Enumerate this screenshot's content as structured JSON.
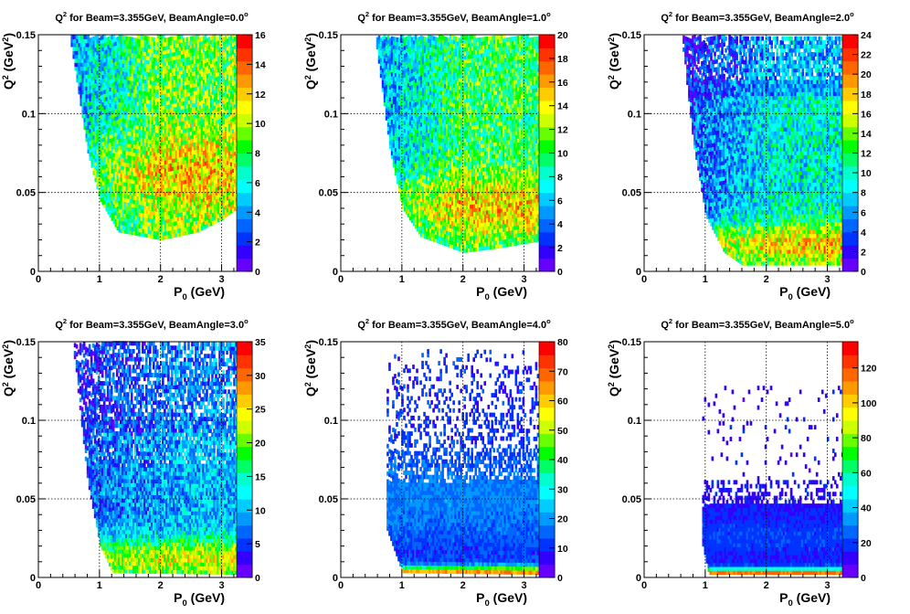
{
  "chart_data": [
    {
      "type": "heatmap",
      "title": "Q² for Beam=3.355GeV, BeamAngle=0.0°",
      "title_main": "Q",
      "title_sup": "2",
      "title_rest": " for Beam=3.355GeV, BeamAngle=0.0",
      "title_deg": "o",
      "xlabel": "P₀ (GeV)",
      "xlabel_main": "P",
      "xlabel_sub": "0",
      "xlabel_rest": " (GeV)",
      "ylabel": "Q² (GeV²)",
      "ylabel_main": "Q",
      "ylabel_sup": "2",
      "ylabel_rest": " (GeV",
      "ylabel_sup2": "2",
      "ylabel_end": ")",
      "xlim": [
        0,
        3.5
      ],
      "ylim": [
        0,
        0.15
      ],
      "zlim": [
        0,
        16
      ],
      "x_ticks": [
        "0",
        "1",
        "2",
        "3"
      ],
      "y_ticks": [
        "0",
        "0.05",
        "0.1",
        "0.15"
      ],
      "z_ticks": [
        "0",
        "2",
        "4",
        "6",
        "8",
        "10",
        "12",
        "14",
        "16"
      ],
      "grid": true,
      "profile": "angle0",
      "region": {
        "p_min": 0.5,
        "p_max": 3.35,
        "q2_min_at_p": [
          [
            0.5,
            0.15
          ],
          [
            0.8,
            0.075
          ],
          [
            1.0,
            0.045
          ],
          [
            1.3,
            0.025
          ],
          [
            2.0,
            0.02
          ],
          [
            2.6,
            0.025
          ],
          [
            3.0,
            0.033
          ],
          [
            3.35,
            0.043
          ]
        ],
        "q2_max": 0.148
      },
      "peak_value": 15
    },
    {
      "type": "heatmap",
      "title": "Q² for Beam=3.355GeV, BeamAngle=1.0°",
      "title_main": "Q",
      "title_sup": "2",
      "title_rest": " for Beam=3.355GeV, BeamAngle=1.0",
      "title_deg": "o",
      "xlabel": "P₀ (GeV)",
      "xlabel_main": "P",
      "xlabel_sub": "0",
      "xlabel_rest": " (GeV)",
      "ylabel": "Q² (GeV²)",
      "ylabel_main": "Q",
      "ylabel_sup": "2",
      "ylabel_rest": " (GeV",
      "ylabel_sup2": "2",
      "ylabel_end": ")",
      "xlim": [
        0,
        3.5
      ],
      "ylim": [
        0,
        0.15
      ],
      "zlim": [
        0,
        20
      ],
      "x_ticks": [
        "0",
        "1",
        "2",
        "3"
      ],
      "y_ticks": [
        "0",
        "0.05",
        "0.1",
        "0.15"
      ],
      "z_ticks": [
        "0",
        "2",
        "4",
        "6",
        "8",
        "10",
        "12",
        "14",
        "16",
        "18",
        "20"
      ],
      "grid": true,
      "profile": "angle1",
      "region": {
        "p_min": 0.55,
        "p_max": 3.35,
        "q2_min_at_p": [
          [
            0.55,
            0.15
          ],
          [
            0.8,
            0.075
          ],
          [
            1.0,
            0.04
          ],
          [
            1.3,
            0.022
          ],
          [
            2.0,
            0.012
          ],
          [
            2.6,
            0.015
          ],
          [
            3.35,
            0.02
          ]
        ],
        "q2_max": 0.148
      },
      "peak_value": 17
    },
    {
      "type": "heatmap",
      "title": "Q² for Beam=3.355GeV, BeamAngle=2.0°",
      "title_main": "Q",
      "title_sup": "2",
      "title_rest": " for Beam=3.355GeV, BeamAngle=2.0",
      "title_deg": "o",
      "xlabel": "P₀ (GeV)",
      "xlabel_main": "P",
      "xlabel_sub": "0",
      "xlabel_rest": " (GeV)",
      "ylabel": "Q² (GeV²)",
      "ylabel_main": "Q",
      "ylabel_sup": "2",
      "ylabel_rest": " (GeV",
      "ylabel_sup2": "2",
      "ylabel_end": ")",
      "xlim": [
        0,
        3.5
      ],
      "ylim": [
        0,
        0.15
      ],
      "zlim": [
        0,
        24
      ],
      "x_ticks": [
        "0",
        "1",
        "2",
        "3"
      ],
      "y_ticks": [
        "0",
        "0.05",
        "0.1",
        "0.15"
      ],
      "z_ticks": [
        "0",
        "2",
        "4",
        "6",
        "8",
        "10",
        "12",
        "14",
        "16",
        "18",
        "20",
        "22",
        "24"
      ],
      "grid": true,
      "profile": "angle2",
      "region": {
        "p_min": 0.6,
        "p_max": 3.35,
        "q2_min_at_p": [
          [
            0.6,
            0.15
          ],
          [
            0.8,
            0.08
          ],
          [
            1.0,
            0.035
          ],
          [
            1.3,
            0.012
          ],
          [
            1.6,
            0.004
          ],
          [
            3.35,
            0.004
          ]
        ],
        "q2_max": 0.148
      },
      "peak_value": 22
    },
    {
      "type": "heatmap",
      "title": "Q² for Beam=3.355GeV, BeamAngle=3.0°",
      "title_main": "Q",
      "title_sup": "2",
      "title_rest": " for Beam=3.355GeV, BeamAngle=3.0",
      "title_deg": "o",
      "xlabel": "P₀ (GeV)",
      "xlabel_main": "P",
      "xlabel_sub": "0",
      "xlabel_rest": " (GeV)",
      "ylabel": "Q² (GeV²)",
      "ylabel_main": "Q",
      "ylabel_sup": "2",
      "ylabel_rest": " (GeV",
      "ylabel_sup2": "2",
      "ylabel_end": ")",
      "xlim": [
        0,
        3.5
      ],
      "ylim": [
        0,
        0.15
      ],
      "zlim": [
        0,
        35
      ],
      "x_ticks": [
        "0",
        "1",
        "2",
        "3"
      ],
      "y_ticks": [
        "0",
        "0.05",
        "0.1",
        "0.15"
      ],
      "z_ticks": [
        "0",
        "5",
        "10",
        "15",
        "20",
        "25",
        "30",
        "35"
      ],
      "grid": true,
      "profile": "angle3",
      "region": {
        "p_min": 0.55,
        "p_max": 3.35,
        "q2_min_at_p": [
          [
            0.55,
            0.15
          ],
          [
            0.8,
            0.06
          ],
          [
            1.0,
            0.02
          ],
          [
            1.2,
            0.003
          ],
          [
            3.35,
            0.002
          ]
        ],
        "q2_max": 0.148
      },
      "peak_value": 30
    },
    {
      "type": "heatmap",
      "title": "Q² for Beam=3.355GeV, BeamAngle=4.0°",
      "title_main": "Q",
      "title_sup": "2",
      "title_rest": " for Beam=3.355GeV, BeamAngle=4.0",
      "title_deg": "o",
      "xlabel": "P₀ (GeV)",
      "xlabel_main": "P",
      "xlabel_sub": "0",
      "xlabel_rest": " (GeV)",
      "ylabel": "Q² (GeV²)",
      "ylabel_main": "Q",
      "ylabel_sup": "2",
      "ylabel_rest": " (GeV",
      "ylabel_sup2": "2",
      "ylabel_end": ")",
      "xlim": [
        0,
        3.5
      ],
      "ylim": [
        0,
        0.15
      ],
      "zlim": [
        0,
        80
      ],
      "x_ticks": [
        "0",
        "1",
        "2",
        "3"
      ],
      "y_ticks": [
        "0",
        "0.05",
        "0.1",
        "0.15"
      ],
      "z_ticks": [
        "0",
        "10",
        "20",
        "30",
        "40",
        "50",
        "60",
        "70",
        "80"
      ],
      "grid": true,
      "profile": "angle4",
      "region": {
        "p_min": 0.75,
        "p_max": 3.35,
        "q2_min_at_p": [
          [
            0.75,
            0.03
          ],
          [
            1.0,
            0.003
          ],
          [
            3.35,
            0.002
          ]
        ],
        "q2_max": 0.145
      },
      "peak_value": 75
    },
    {
      "type": "heatmap",
      "title": "Q² for Beam=3.355GeV, BeamAngle=5.0°",
      "title_main": "Q",
      "title_sup": "2",
      "title_rest": " for Beam=3.355GeV, BeamAngle=5.0",
      "title_deg": "o",
      "xlabel": "P₀ (GeV)",
      "xlabel_main": "P",
      "xlabel_sub": "0",
      "xlabel_rest": " (GeV)",
      "ylabel": "Q² (GeV²)",
      "ylabel_main": "Q",
      "ylabel_sup": "2",
      "ylabel_rest": " (GeV",
      "ylabel_sup2": "2",
      "ylabel_end": ")",
      "xlim": [
        0,
        3.5
      ],
      "ylim": [
        0,
        0.15
      ],
      "zlim": [
        0,
        135
      ],
      "x_ticks": [
        "0",
        "1",
        "2",
        "3"
      ],
      "y_ticks": [
        "0",
        "0.05",
        "0.1",
        "0.15"
      ],
      "z_ticks": [
        "0",
        "20",
        "40",
        "60",
        "80",
        "100",
        "120"
      ],
      "grid": true,
      "profile": "angle5",
      "region": {
        "p_min": 0.95,
        "p_max": 3.35,
        "q2_min_at_p": [
          [
            0.95,
            0.02
          ],
          [
            1.05,
            0.002
          ],
          [
            3.35,
            0.002
          ]
        ],
        "q2_max": 0.12
      },
      "peak_value": 130
    }
  ],
  "palette": [
    "#6600ff",
    "#3300ff",
    "#0033ff",
    "#0066ff",
    "#0099ff",
    "#00ccff",
    "#00ffff",
    "#00ffcc",
    "#00ff66",
    "#00ff00",
    "#66ff00",
    "#ccff00",
    "#ffff00",
    "#ffcc00",
    "#ff9900",
    "#ff6600",
    "#ff3300",
    "#ff0000"
  ]
}
